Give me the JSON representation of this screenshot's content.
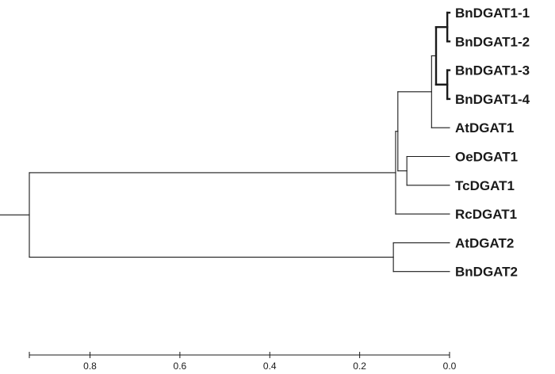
{
  "tree": {
    "leaves": [
      "BnDGAT1-1",
      "BnDGAT1-2",
      "BnDGAT1-3",
      "BnDGAT1-4",
      "AtDGAT1",
      "OeDGAT1",
      "TcDGAT1",
      "RcDGAT1",
      "AtDGAT2",
      "BnDGAT2"
    ],
    "nodes": [
      {
        "id": "n12",
        "children": [
          "BnDGAT1-1",
          "BnDGAT1-2"
        ],
        "height": 0.005
      },
      {
        "id": "n34",
        "children": [
          "BnDGAT1-3",
          "BnDGAT1-4"
        ],
        "height": 0.005
      },
      {
        "id": "nBn",
        "children": [
          "n12",
          "n34"
        ],
        "height": 0.03
      },
      {
        "id": "nBnAt",
        "children": [
          "nBn",
          "AtDGAT1"
        ],
        "height": 0.04
      },
      {
        "id": "nOeTc",
        "children": [
          "OeDGAT1",
          "TcDGAT1"
        ],
        "height": 0.095
      },
      {
        "id": "nMid",
        "children": [
          "nBnAt",
          "nOeTc"
        ],
        "height": 0.115
      },
      {
        "id": "nDGAT1",
        "children": [
          "nMid",
          "RcDGAT1"
        ],
        "height": 0.12
      },
      {
        "id": "nDGAT2",
        "children": [
          "AtDGAT2",
          "BnDGAT2"
        ],
        "height": 0.125
      },
      {
        "id": "root",
        "children": [
          "nDGAT1",
          "nDGAT2"
        ],
        "height": 0.935
      }
    ],
    "bold_nodes": [
      "n12",
      "n34",
      "nBn"
    ]
  },
  "axis": {
    "domain": [
      0.935,
      0.0
    ],
    "ticks": [
      0.8,
      0.6,
      0.4,
      0.2,
      0.0
    ],
    "tick_labels": [
      "0.8",
      "0.6",
      "0.4",
      "0.2",
      "0.0"
    ]
  }
}
